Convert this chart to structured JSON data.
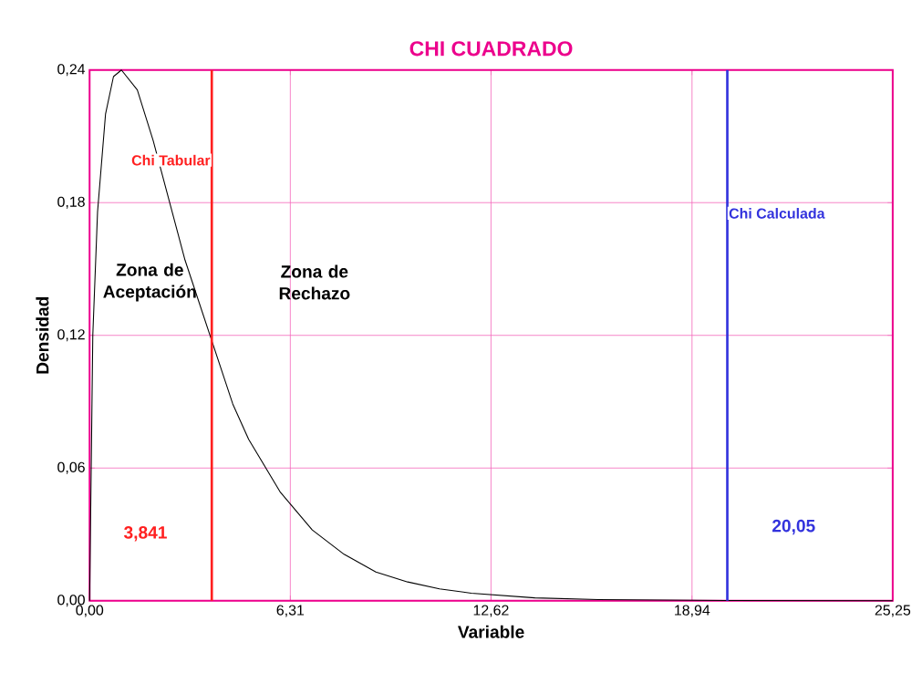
{
  "chart_data": {
    "type": "line",
    "title": "CHI CUADRADO",
    "xlabel": "Variable",
    "ylabel": "Densidad",
    "xlim": [
      0,
      25.25
    ],
    "ylim": [
      0,
      0.24
    ],
    "xticks": [
      {
        "value": 0,
        "label": "0,00"
      },
      {
        "value": 6.31,
        "label": "6,31"
      },
      {
        "value": 12.62,
        "label": "12,62"
      },
      {
        "value": 18.94,
        "label": "18,94"
      },
      {
        "value": 25.25,
        "label": "25,25"
      }
    ],
    "yticks": [
      {
        "value": 0,
        "label": "0,00"
      },
      {
        "value": 0.06,
        "label": "0,06"
      },
      {
        "value": 0.12,
        "label": "0,12"
      },
      {
        "value": 0.18,
        "label": "0,18"
      },
      {
        "value": 0.24,
        "label": "0,24"
      }
    ],
    "grid": true,
    "series": [
      {
        "color": "#000000",
        "x": [
          0,
          0.1,
          0.25,
          0.5,
          0.75,
          1,
          1.5,
          2,
          2.5,
          3,
          4.5,
          5,
          6,
          7,
          8,
          9,
          10,
          11,
          12,
          14,
          16,
          20,
          25.25
        ],
        "values": [
          0,
          0.12,
          0.176,
          0.22,
          0.237,
          0.24,
          0.231,
          0.208,
          0.181,
          0.154,
          0.089,
          0.073,
          0.049,
          0.032,
          0.021,
          0.013,
          0.0085,
          0.0054,
          0.0034,
          0.0013,
          0.0005,
          0.0001,
          0
        ]
      }
    ],
    "ref_lines": [
      {
        "axis": "x",
        "value": 3.841,
        "label": "Chi Tabular",
        "color": "#ff2020"
      },
      {
        "axis": "x",
        "value": 20.05,
        "label": "Chi Calculada",
        "color": "#3333dd"
      }
    ],
    "annotations": [
      {
        "text": "3,841",
        "x": 3.841,
        "y": 0.025
      },
      {
        "text": "20,05",
        "x": 20.05,
        "y": 0.028
      },
      "Zona de Aceptación",
      "Zona de Rechazo"
    ]
  }
}
